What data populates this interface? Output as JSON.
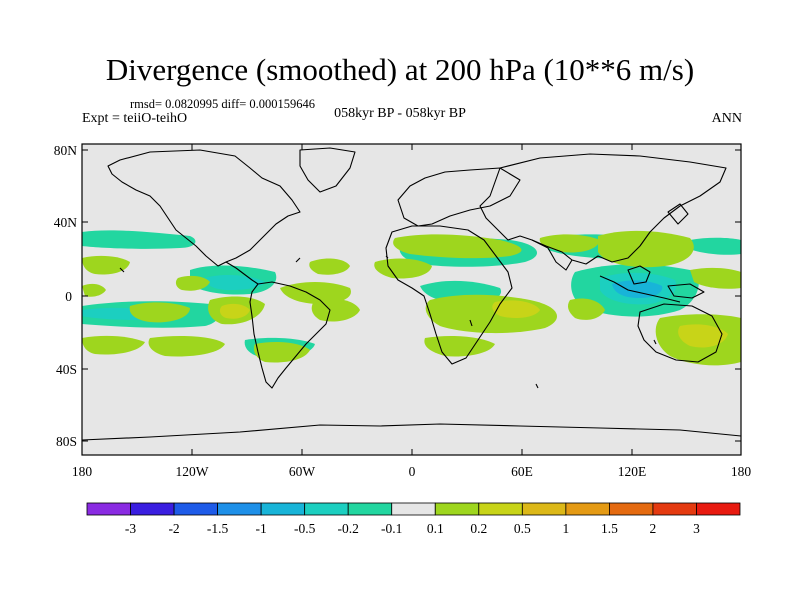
{
  "title": "Divergence (smoothed) at 200 hPa (10**6 m/s)",
  "stats": "rmsd= 0.0820995 diff= 0.000159646",
  "experiment": "Expt = teiiO-teihO",
  "period": "058kyr BP - 058kyr BP",
  "season": "ANN",
  "lat_ticks": [
    "80N",
    "40N",
    "0",
    "40S",
    "80S"
  ],
  "lon_ticks": [
    "180",
    "120W",
    "60W",
    "0",
    "60E",
    "120E",
    "180"
  ],
  "colorbar": {
    "labels": [
      "-3",
      "-2",
      "-1.5",
      "-1",
      "-0.5",
      "-0.2",
      "-0.1",
      "0.1",
      "0.2",
      "0.5",
      "1",
      "1.5",
      "2",
      "3"
    ],
    "colors": [
      "#8a2be2",
      "#3a1ee0",
      "#1e5be8",
      "#1e90e8",
      "#18b4d8",
      "#1ccfc0",
      "#22d6a0",
      "#e6e6e6",
      "#9ed61e",
      "#c8d418",
      "#dcb818",
      "#e49a14",
      "#e46a10",
      "#e43a10",
      "#e81a10"
    ]
  },
  "colors": {
    "land_ocean": "#e6e6e6",
    "coast": "#000000"
  }
}
